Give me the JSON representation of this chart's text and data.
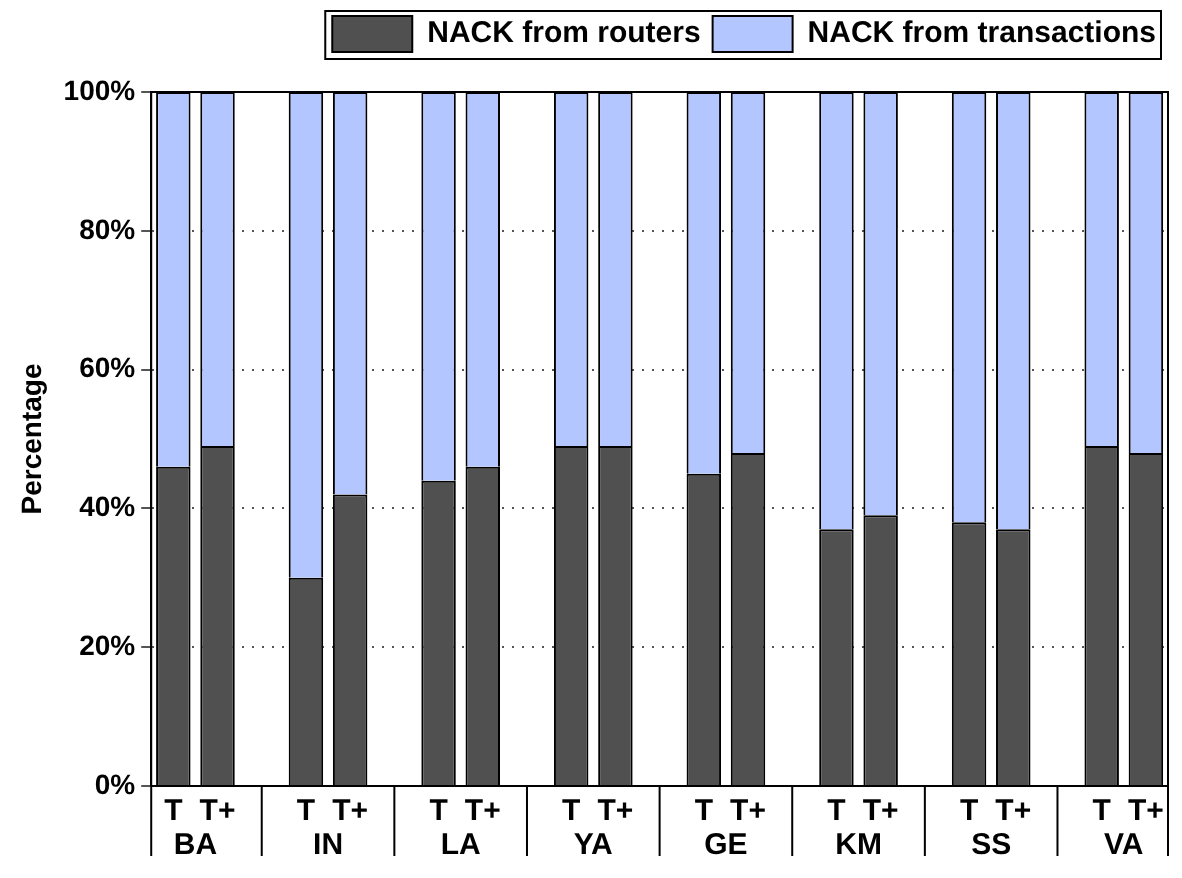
{
  "chart_data": {
    "type": "bar",
    "stacked": true,
    "ylabel": "Percentage",
    "categories": [
      "T",
      "T+",
      "T",
      "T+",
      "T",
      "T+",
      "T",
      "T+",
      "T",
      "T+",
      "T",
      "T+",
      "T",
      "T+",
      "T",
      "T+"
    ],
    "annotations": [
      "BA",
      "IN",
      "LA",
      "YA",
      "GE",
      "KM",
      "SS",
      "VA"
    ],
    "series": [
      {
        "name": "NACK from routers",
        "color": "#505050",
        "values": [
          46,
          49,
          30,
          42,
          44,
          46,
          49,
          49,
          45,
          48,
          37,
          39,
          38,
          37,
          49,
          48
        ]
      },
      {
        "name": "NACK from transactions",
        "color": "#b3c6ff",
        "values": [
          54,
          51,
          70,
          58,
          56,
          54,
          51,
          51,
          55,
          52,
          63,
          61,
          62,
          63,
          51,
          52
        ]
      }
    ],
    "ylim": [
      0,
      100
    ],
    "yticks": [
      {
        "value": 0,
        "label": "0%"
      },
      {
        "value": 20,
        "label": "20%"
      },
      {
        "value": 40,
        "label": "40%"
      },
      {
        "value": 60,
        "label": "60%"
      },
      {
        "value": 80,
        "label": "80%"
      },
      {
        "value": 100,
        "label": "100%"
      }
    ],
    "grid": "y",
    "legend": "top"
  }
}
